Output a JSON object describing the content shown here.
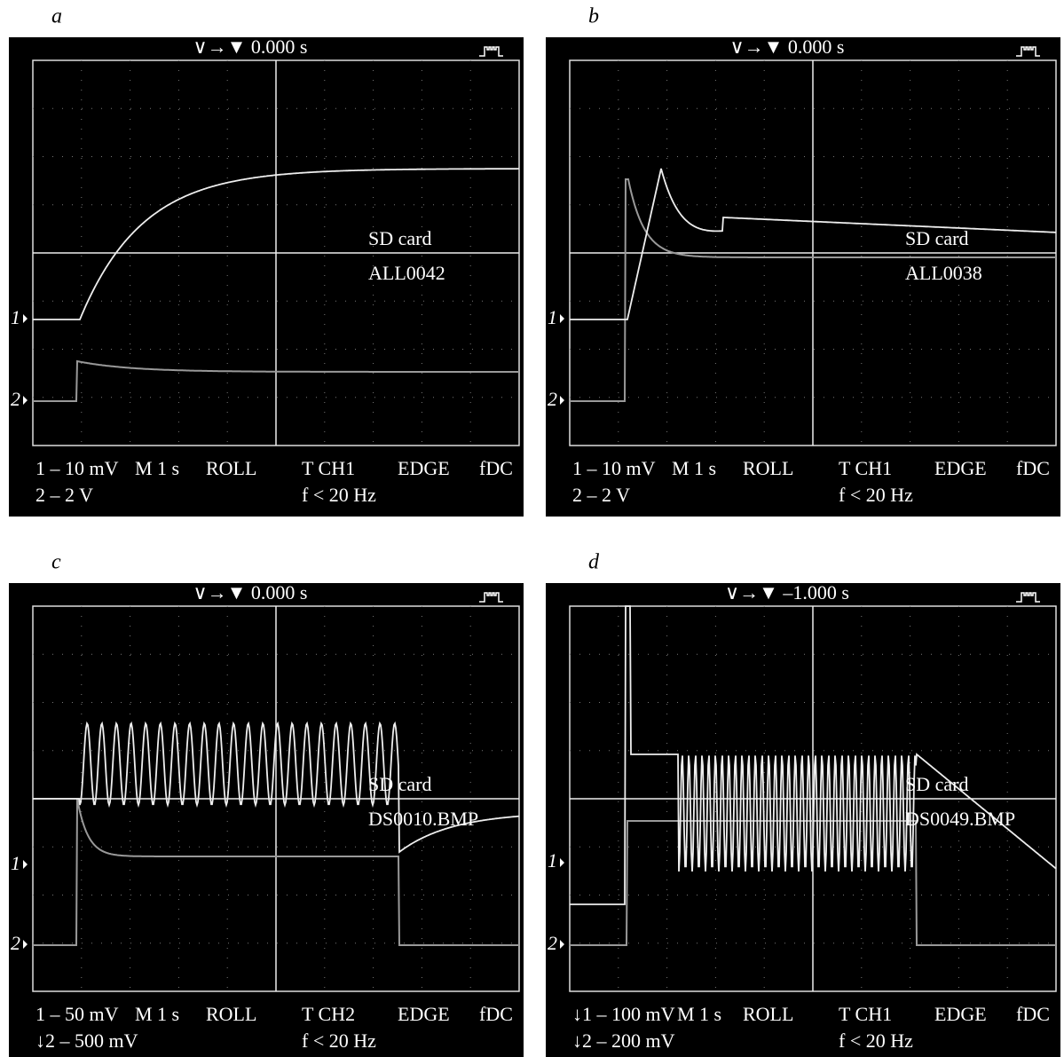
{
  "panels": [
    {
      "label": "a",
      "header": "∨→▼ 0.000 s",
      "sd_card": "SD card",
      "file": "ALL0042",
      "marker1": "1",
      "marker2": "2",
      "ch1": "1 – 10 mV",
      "timebase": "M 1 s",
      "mode": "ROLL",
      "trigger_source": "T CH1",
      "trigger_type": "EDGE",
      "coupling": "fDC",
      "ch2": "2 – 2 V",
      "filter": "f < 20 Hz"
    },
    {
      "label": "b",
      "header": "∨→▼ 0.000 s",
      "sd_card": "SD card",
      "file": "ALL0038",
      "marker1": "1",
      "marker2": "2",
      "ch1": "1 – 10 mV",
      "timebase": "M 1 s",
      "mode": "ROLL",
      "trigger_source": "T CH1",
      "trigger_type": "EDGE",
      "coupling": "fDC",
      "ch2": "2 – 2 V",
      "filter": "f < 20 Hz"
    },
    {
      "label": "c",
      "header": "∨→▼ 0.000 s",
      "sd_card": "SD card",
      "file": "DS0010.BMP",
      "marker1": "1",
      "marker2": "2",
      "ch1": "1 – 50 mV",
      "timebase": "M 1 s",
      "mode": "ROLL",
      "trigger_source": "T CH2",
      "trigger_type": "EDGE",
      "coupling": "fDC",
      "ch2": "↓2 – 500 mV",
      "filter": "f < 20 Hz"
    },
    {
      "label": "d",
      "header": "∨→▼ –1.000 s",
      "sd_card": "SD card",
      "file": "DS0049.BMP",
      "marker1": "1",
      "marker2": "2",
      "ch1": "↓1 – 100 mV",
      "timebase": "M 1 s",
      "mode": "ROLL",
      "trigger_source": "T CH1",
      "trigger_type": "EDGE",
      "coupling": "fDC",
      "ch2": "↓2 – 200 mV",
      "filter": "f < 20 Hz"
    }
  ]
}
